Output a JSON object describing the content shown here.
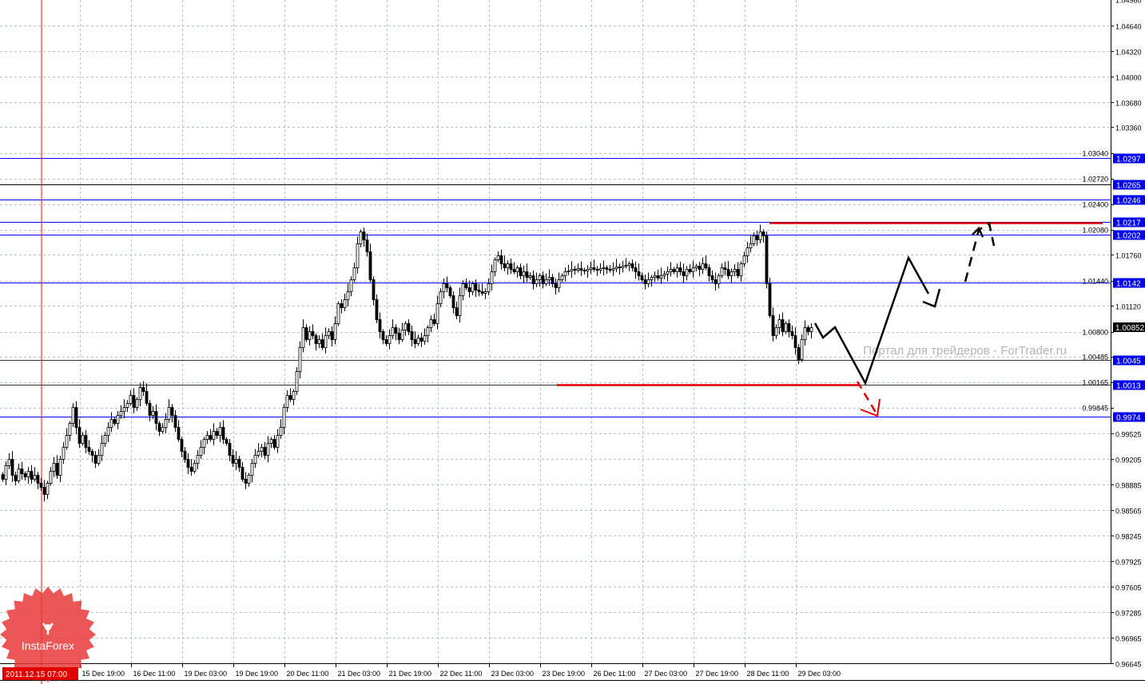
{
  "chart_data": {
    "type": "candlestick",
    "title": "",
    "watermark": "Портал для трейдеров - ForTrader.ru",
    "logo": "InstaForex",
    "ylim": [
      0.96645,
      1.0496
    ],
    "grid": true,
    "current_price": "1.00852",
    "cursor_time_label": "2011.12.15 07:00",
    "price_ticks": [
      "1.04960",
      "1.04640",
      "1.04320",
      "1.04000",
      "1.03680",
      "1.03360",
      "1.03040",
      "1.02720",
      "1.02400",
      "1.02080",
      "1.01760",
      "1.01440",
      "1.01120",
      "1.00800",
      "1.00485",
      "1.00165",
      "0.99845",
      "0.99525",
      "0.99205",
      "0.98885",
      "0.98565",
      "0.98245",
      "0.97925",
      "0.97605",
      "0.97285",
      "0.96965",
      "0.96645"
    ],
    "time_ticks": [
      "15 Dec 19:00",
      "16 Dec 11:00",
      "19 Dec 03:00",
      "19 Dec 19:00",
      "20 Dec 11:00",
      "21 Dec 03:00",
      "21 Dec 19:00",
      "22 Dec 11:00",
      "23 Dec 03:00",
      "23 Dec 19:00",
      "26 Dec 11:00",
      "27 Dec 03:00",
      "27 Dec 19:00",
      "28 Dec 11:00",
      "29 Dec 03:00"
    ],
    "levels": [
      {
        "value": 1.0297,
        "label": "1.0297",
        "color": "#0000ff"
      },
      {
        "value": 1.0265,
        "label": "1.0265",
        "color": "#000000"
      },
      {
        "value": 1.0246,
        "label": "1.0246",
        "color": "#0000ff"
      },
      {
        "value": 1.0217,
        "label": "1.0217",
        "color": "#0000ff"
      },
      {
        "value": 1.0202,
        "label": "1.0202",
        "color": "#0000ff"
      },
      {
        "value": 1.0142,
        "label": "1.0142",
        "color": "#0000ff"
      },
      {
        "value": 1.0045,
        "label": "1.0045",
        "color": "#333333"
      },
      {
        "value": 1.0013,
        "label": "1.0013",
        "color": "#333333"
      },
      {
        "value": 0.9974,
        "label": "0.9974",
        "color": "#0000ff"
      }
    ],
    "target_lines": [
      {
        "value": 1.0217,
        "color": "#dd0000"
      },
      {
        "value": 1.0013,
        "color": "#dd0000"
      }
    ],
    "closes": [
      0.9895,
      0.9912,
      0.992,
      0.99,
      0.9893,
      0.9908,
      0.9902,
      0.9898,
      0.9905,
      0.9895,
      0.99,
      0.989,
      0.9885,
      0.9876,
      0.989,
      0.9905,
      0.9915,
      0.99,
      0.992,
      0.9935,
      0.995,
      0.9965,
      0.9985,
      0.996,
      0.994,
      0.995,
      0.9935,
      0.993,
      0.9925,
      0.9915,
      0.9925,
      0.994,
      0.995,
      0.996,
      0.997,
      0.9965,
      0.9975,
      0.998,
      0.9985,
      0.999,
      1.0,
      0.9985,
      0.9995,
      1.001,
      1.0005,
      0.999,
      0.9975,
      0.998,
      0.9965,
      0.9955,
      0.996,
      0.997,
      0.9985,
      0.9975,
      0.996,
      0.9945,
      0.993,
      0.992,
      0.991,
      0.9905,
      0.9915,
      0.9925,
      0.9935,
      0.9945,
      0.995,
      0.9945,
      0.9955,
      0.995,
      0.996,
      0.9945,
      0.994,
      0.9925,
      0.9915,
      0.992,
      0.991,
      0.9895,
      0.989,
      0.99,
      0.9915,
      0.9925,
      0.993,
      0.9935,
      0.9925,
      0.994,
      0.9945,
      0.9935,
      0.995,
      0.996,
      0.9985,
      1.0,
      0.9995,
      1.0005,
      1.003,
      1.006,
      1.0085,
      1.007,
      1.008,
      1.0075,
      1.0065,
      1.007,
      1.006,
      1.0075,
      1.008,
      1.007,
      1.009,
      1.0115,
      1.011,
      1.012,
      1.013,
      1.0145,
      1.016,
      1.019,
      1.0205,
      1.0195,
      1.018,
      1.0145,
      1.012,
      1.0095,
      1.008,
      1.007,
      1.0065,
      1.0075,
      1.0085,
      1.0078,
      1.007,
      1.0082,
      1.009,
      1.008,
      1.007,
      1.0065,
      1.0072,
      1.0068,
      1.0075,
      1.0085,
      1.0095,
      1.009,
      1.0115,
      1.013,
      1.014,
      1.0135,
      1.0125,
      1.011,
      1.01,
      1.0125,
      1.014,
      1.0135,
      1.013,
      1.014,
      1.0132,
      1.013,
      1.0128,
      1.013,
      1.014,
      1.0155,
      1.017,
      1.0175,
      1.0165,
      1.016,
      1.0165,
      1.0158,
      1.0155,
      1.016,
      1.015,
      1.0155,
      1.0148,
      1.015,
      1.014,
      1.0145,
      1.015,
      1.014,
      1.0145,
      1.0148,
      1.014,
      1.0135,
      1.0145,
      1.015,
      1.0155,
      1.0156,
      1.0158,
      1.0157,
      1.0159,
      1.0157,
      1.0156,
      1.0158,
      1.016,
      1.0158,
      1.0157,
      1.0159,
      1.016,
      1.0158,
      1.0157,
      1.0159,
      1.0161,
      1.016,
      1.0162,
      1.0163,
      1.0165,
      1.016,
      1.0155,
      1.015,
      1.0145,
      1.014,
      1.0145,
      1.0148,
      1.015,
      1.0147,
      1.015,
      1.0152,
      1.0155,
      1.0158,
      1.0155,
      1.016,
      1.0155,
      1.015,
      1.0158,
      1.0155,
      1.016,
      1.0162,
      1.0158,
      1.0165,
      1.016,
      1.015,
      1.0145,
      1.014,
      1.015,
      1.016,
      1.0158,
      1.015,
      1.0155,
      1.0158,
      1.015,
      1.0165,
      1.0175,
      1.0185,
      1.019,
      1.02,
      1.0195,
      1.0205,
      1.02,
      1.014,
      1.01,
      1.0075,
      1.0085,
      1.0095,
      1.008,
      1.009,
      1.008,
      1.0075,
      1.006,
      1.0045,
      1.007,
      1.0085,
      1.008,
      1.0085
    ]
  }
}
